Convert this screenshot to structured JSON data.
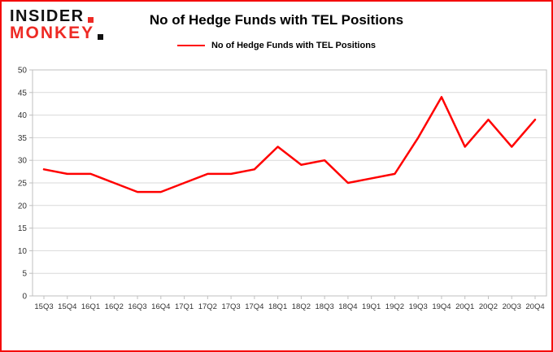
{
  "logo": {
    "line1": "INSIDER",
    "line2": "MONKEY"
  },
  "header": {
    "title": "No of Hedge Funds with TEL Positions"
  },
  "legend": {
    "label": "No of Hedge Funds with TEL Positions"
  },
  "colors": {
    "line": "#ff0000",
    "frame_border": "#f40b0b",
    "logo_red": "#ee2a24",
    "logo_black": "#111111",
    "grid": "#d9d9d9",
    "plot_border": "#bfbfbf",
    "tick_text": "#333333"
  },
  "chart_data": {
    "type": "line",
    "title": "No of Hedge Funds with TEL Positions",
    "categories": [
      "15Q3",
      "15Q4",
      "16Q1",
      "16Q2",
      "16Q3",
      "16Q4",
      "17Q1",
      "17Q2",
      "17Q3",
      "17Q4",
      "18Q1",
      "18Q2",
      "18Q3",
      "18Q4",
      "19Q1",
      "19Q2",
      "19Q3",
      "19Q4",
      "20Q1",
      "20Q2",
      "20Q3",
      "20Q4"
    ],
    "series": [
      {
        "name": "No of Hedge Funds with TEL Positions",
        "color": "#ff0000",
        "values": [
          28,
          27,
          27,
          25,
          23,
          23,
          25,
          27,
          27,
          28,
          33,
          29,
          30,
          25,
          26,
          27,
          35,
          44,
          33,
          39,
          33,
          39
        ]
      }
    ],
    "xlabel": "",
    "ylabel": "",
    "ylim": [
      0,
      50
    ],
    "ytick_step": 5,
    "grid": true,
    "legend_position": "top-center"
  }
}
